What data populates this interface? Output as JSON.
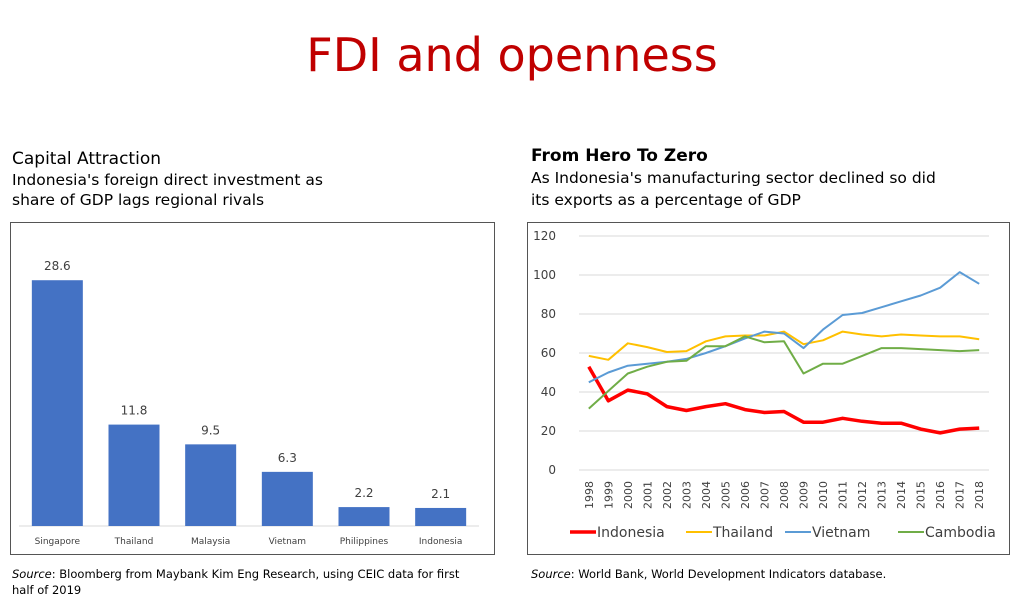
{
  "slide": {
    "title": "FDI and openness"
  },
  "left_panel": {
    "title": "Capital Attraction",
    "subtitle_line1": "Indonesia's foreign direct investment as",
    "subtitle_line2": "share of GDP lags regional rivals",
    "source_label": "Source",
    "source_text": ": Bloomberg from Maybank Kim Eng Research, using CEIC data for first half of 2019"
  },
  "right_panel": {
    "title": "From Hero To Zero",
    "subtitle_line1": "As Indonesia's manufacturing sector declined so did",
    "subtitle_line2": "its exports as a percentage of GDP",
    "source_label": "Source",
    "source_text": ": World Bank, World Development Indicators database."
  },
  "chart_data": [
    {
      "type": "bar",
      "categories": [
        "Singapore",
        "Thailand",
        "Malaysia",
        "Vietnam",
        "Philippines",
        "Indonesia"
      ],
      "values": [
        28.6,
        11.8,
        9.5,
        6.3,
        2.2,
        2.1
      ],
      "data_labels": [
        "28.6",
        "11.8",
        "9.5",
        "6.3",
        "2.2",
        "2.1"
      ],
      "ylim": [
        0,
        32
      ],
      "color": "#4472c4",
      "grid": false
    },
    {
      "type": "line",
      "x": [
        "1998",
        "1999",
        "2000",
        "2001",
        "2002",
        "2003",
        "2004",
        "2005",
        "2006",
        "2007",
        "2008",
        "2009",
        "2010",
        "2011",
        "2012",
        "2013",
        "2014",
        "2015",
        "2016",
        "2017",
        "2018"
      ],
      "yticks": [
        "0",
        "20",
        "40",
        "60",
        "80",
        "100",
        "120"
      ],
      "ylim": [
        0,
        120
      ],
      "grid": true,
      "legend_position": "bottom",
      "series": [
        {
          "name": "Indonesia",
          "color": "#ff0000",
          "values": [
            53,
            35.5,
            41,
            39,
            32.5,
            30.5,
            32.5,
            34,
            31,
            29.5,
            30,
            24.5,
            24.5,
            26.5,
            25,
            24,
            24,
            21,
            19,
            21,
            21.5
          ]
        },
        {
          "name": "Thailand",
          "color": "#ffc000",
          "values": [
            58.5,
            56.5,
            65,
            63,
            60.5,
            61,
            66,
            68.5,
            69,
            69,
            71,
            64.5,
            66.5,
            71,
            69.5,
            68.5,
            69.5,
            69,
            68.5,
            68.5,
            67
          ]
        },
        {
          "name": "Vietnam",
          "color": "#5b9bd5",
          "values": [
            45,
            50,
            53.5,
            54.5,
            55.5,
            57,
            60,
            63.5,
            67.5,
            71,
            70,
            62.5,
            72,
            79.5,
            80.5,
            83.5,
            86.5,
            89.5,
            93.5,
            101.5,
            95.5
          ]
        },
        {
          "name": "Cambodia",
          "color": "#70ad47",
          "values": [
            31.5,
            40.5,
            49.5,
            53,
            55.5,
            56,
            63.5,
            63.5,
            68.5,
            65.5,
            66,
            49.5,
            54.5,
            54.5,
            58.5,
            62.5,
            62.5,
            62,
            61.5,
            61,
            61.5
          ]
        }
      ]
    }
  ]
}
